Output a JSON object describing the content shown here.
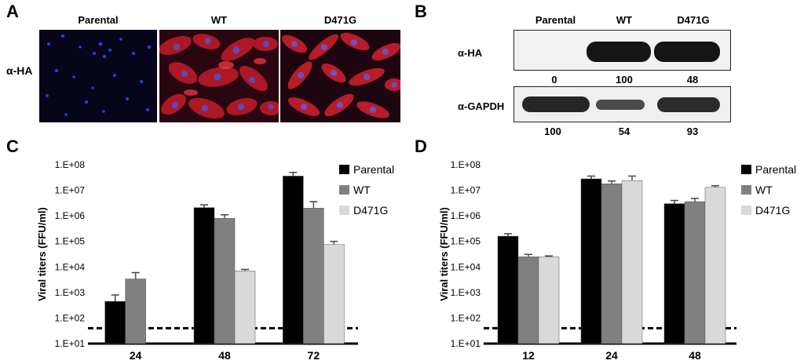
{
  "panels": {
    "A": {
      "letter": "A",
      "row_label": "α-HA",
      "columns": [
        "Parental",
        "WT",
        "D471G"
      ]
    },
    "B": {
      "letter": "B",
      "columns": [
        "Parental",
        "WT",
        "D471G"
      ],
      "rows": [
        {
          "label": "α-HA",
          "quant": [
            "0",
            "100",
            "48"
          ]
        },
        {
          "label": "α-GAPDH",
          "quant": [
            "100",
            "54",
            "93"
          ]
        }
      ]
    }
  },
  "colors": {
    "parental": "#000000",
    "wt": "#808080",
    "d471g": "#d9d9d9",
    "nuclei": "#2233dd",
    "ha_stain": "#e0242e"
  },
  "chart_data": [
    {
      "panel": "C",
      "type": "bar",
      "scale": "log",
      "ylabel": "Viral titers (FFU/ml)",
      "yticks": [
        "1.E+01",
        "1.E+02",
        "1.E+03",
        "1.E+04",
        "1.E+05",
        "1.E+06",
        "1.E+07",
        "1.E+08"
      ],
      "ylim": [
        10,
        100000000
      ],
      "detection_limit": 40,
      "categories": [
        "24",
        "48",
        "72"
      ],
      "series": [
        {
          "name": "Parental",
          "values": [
            450,
            2100000,
            36000000
          ],
          "errors": [
            800,
            2700000,
            50000000
          ]
        },
        {
          "name": "WT",
          "values": [
            3400,
            800000,
            2000000
          ],
          "errors": [
            6000,
            1100000,
            3600000
          ]
        },
        {
          "name": "D471G",
          "values": [
            null,
            7000,
            75000
          ],
          "errors": [
            null,
            8000,
            100000
          ]
        }
      ]
    },
    {
      "panel": "D",
      "type": "bar",
      "scale": "log",
      "ylabel": "Viral titers (FFU/ml)",
      "yticks": [
        "1.E+01",
        "1.E+02",
        "1.E+03",
        "1.E+04",
        "1.E+05",
        "1.E+06",
        "1.E+07",
        "1.E+08"
      ],
      "ylim": [
        10,
        100000000
      ],
      "detection_limit": 40,
      "categories": [
        "12",
        "24",
        "48"
      ],
      "series": [
        {
          "name": "Parental",
          "values": [
            160000,
            28000000,
            3000000
          ],
          "errors": [
            200000,
            36000000,
            4000000
          ]
        },
        {
          "name": "WT",
          "values": [
            25000,
            18000000,
            3600000
          ],
          "errors": [
            31000,
            23000000,
            4800000
          ]
        },
        {
          "name": "D471G",
          "values": [
            25000,
            24000000,
            13000000
          ],
          "errors": [
            27000,
            36000000,
            15000000
          ]
        }
      ]
    }
  ]
}
